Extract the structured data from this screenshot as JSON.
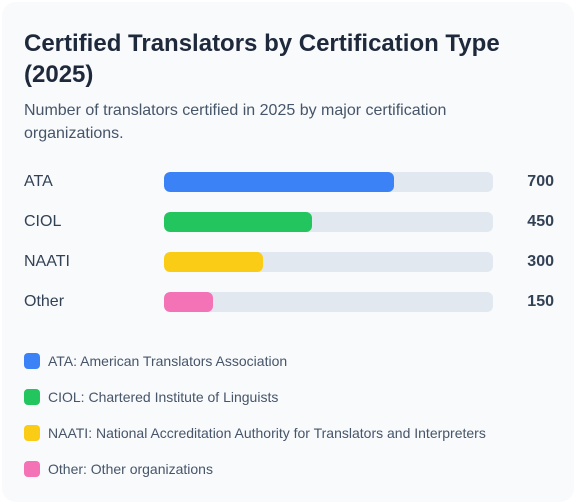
{
  "header": {
    "title": "Certified Translators by Certification Type (2025)",
    "subtitle": "Number of translators certified in 2025 by major certification organizations."
  },
  "chart_data": {
    "type": "bar",
    "orientation": "horizontal",
    "title": "Certified Translators by Certification Type (2025)",
    "subtitle": "Number of translators certified in 2025 by major certification organizations.",
    "categories": [
      "ATA",
      "CIOL",
      "NAATI",
      "Other"
    ],
    "values": [
      700,
      450,
      300,
      150
    ],
    "value_labels": [
      "700",
      "450",
      "300",
      "150"
    ],
    "colors": [
      "#3b82f6",
      "#22c55e",
      "#facc15",
      "#f472b6"
    ],
    "xlim": [
      0,
      1000
    ],
    "grid": false,
    "legend_placement": "bottom",
    "legend": [
      "ATA: American Translators Association",
      "CIOL: Chartered Institute of Linguists",
      "NAATI: National Accreditation Authority for Translators and Interpreters",
      "Other: Other organizations"
    ]
  }
}
